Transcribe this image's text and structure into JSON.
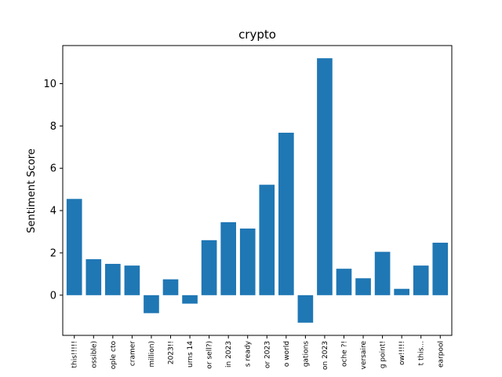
{
  "chart_data": {
    "type": "bar",
    "title": "crypto",
    "xlabel": "",
    "ylabel": "Sentiment Score",
    "categories": [
      "this!!!!!",
      "ossible)",
      "ople cto",
      "cramer",
      "million)",
      "2023!!",
      "urns 14",
      "or sell?)",
      "in 2023",
      "s ready",
      "or 2023",
      "o world",
      "gations",
      "on 2023",
      "oche ?!",
      "versaire",
      "g point!",
      "ow!!!!!",
      "t this...",
      "earpool"
    ],
    "values": [
      4.55,
      1.7,
      1.48,
      1.4,
      -0.85,
      0.75,
      -0.4,
      2.6,
      3.45,
      3.15,
      5.22,
      7.68,
      -1.3,
      11.2,
      1.25,
      0.8,
      2.05,
      0.3,
      1.4,
      2.48
    ],
    "yticks": [
      0,
      2,
      4,
      6,
      8,
      10
    ],
    "ylim": [
      -1.9,
      11.8
    ],
    "bar_color": "#1f77b4",
    "grid": false,
    "legend": "none"
  }
}
